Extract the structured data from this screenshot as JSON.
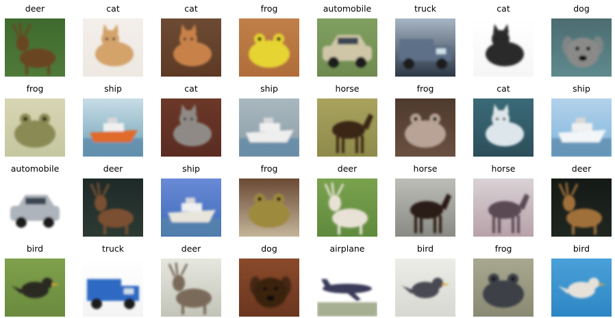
{
  "images": [
    {
      "label": "deer",
      "subject": "deer",
      "bg": "#4f7a3a",
      "fg": "#6b4424",
      "top": "#3f6a2e"
    },
    {
      "label": "cat",
      "subject": "cat",
      "bg": "#eee8e2",
      "fg": "#d3a36a",
      "top": "#f3efea"
    },
    {
      "label": "cat",
      "subject": "cat",
      "bg": "#5e3a24",
      "fg": "#c8824a",
      "top": "#6c4a33"
    },
    {
      "label": "frog",
      "subject": "frog",
      "bg": "#b06d3a",
      "fg": "#e6d431",
      "top": "#c07f48"
    },
    {
      "label": "automobile",
      "subject": "automobile",
      "bg": "#6f8a4f",
      "fg": "#cfc6a8",
      "top": "#7fa060"
    },
    {
      "label": "truck",
      "subject": "truck",
      "bg": "#2d3746",
      "fg": "#5d6f88",
      "top": "#a7b6c4"
    },
    {
      "label": "cat",
      "subject": "cat",
      "bg": "#f6f6f6",
      "fg": "#2b2b2b",
      "top": "#ffffff"
    },
    {
      "label": "dog",
      "subject": "dog",
      "bg": "#5f8a8e",
      "fg": "#8a8a88",
      "top": "#4c6c70"
    },
    {
      "label": "frog",
      "subject": "frog",
      "bg": "#c4c79f",
      "fg": "#8a8a55",
      "top": "#d8d6b4"
    },
    {
      "label": "ship",
      "subject": "ship",
      "bg": "#6ea0b7",
      "fg": "#e06a2a",
      "top": "#c8dde6"
    },
    {
      "label": "cat",
      "subject": "cat",
      "bg": "#5a2c22",
      "fg": "#8f8a86",
      "top": "#6b3828"
    },
    {
      "label": "ship",
      "subject": "ship",
      "bg": "#8b9ca6",
      "fg": "#eeeeee",
      "top": "#a9b8bf"
    },
    {
      "label": "horse",
      "subject": "horse",
      "bg": "#8e8a4a",
      "fg": "#3a2616",
      "top": "#a9a35e"
    },
    {
      "label": "frog",
      "subject": "frog",
      "bg": "#6a5040",
      "fg": "#b8a396",
      "top": "#4e3a2e"
    },
    {
      "label": "cat",
      "subject": "cat",
      "bg": "#2c4e5a",
      "fg": "#dde6ea",
      "top": "#3b6a78"
    },
    {
      "label": "ship",
      "subject": "ship",
      "bg": "#7fb4de",
      "fg": "#f3f6f8",
      "top": "#b3d2ea"
    },
    {
      "label": "automobile",
      "subject": "automobile",
      "bg": "#ffffff",
      "fg": "#aeb4bb",
      "top": "#ffffff"
    },
    {
      "label": "deer",
      "subject": "deer",
      "bg": "#2c3a33",
      "fg": "#7a5030",
      "top": "#1e2a28"
    },
    {
      "label": "ship",
      "subject": "ship",
      "bg": "#3c6ab8",
      "fg": "#e8e6dc",
      "top": "#6a8ad6"
    },
    {
      "label": "frog",
      "subject": "frog",
      "bg": "#c4b49a",
      "fg": "#9e8a3e",
      "top": "#6a4a34"
    },
    {
      "label": "deer",
      "subject": "deer",
      "bg": "#5f8a3c",
      "fg": "#e8e2d6",
      "top": "#7aa24e"
    },
    {
      "label": "horse",
      "subject": "horse",
      "bg": "#8a8a84",
      "fg": "#2a1a12",
      "top": "#bdbdb8"
    },
    {
      "label": "horse",
      "subject": "horse",
      "bg": "#b7a1a8",
      "fg": "#5a4a52",
      "top": "#d9d2d6"
    },
    {
      "label": "deer",
      "subject": "deer",
      "bg": "#1f2620",
      "fg": "#a0703a",
      "top": "#151a16"
    },
    {
      "label": "bird",
      "subject": "bird",
      "bg": "#6a8a3e",
      "fg": "#2a2a22",
      "top": "#7fa04c"
    },
    {
      "label": "truck",
      "subject": "truck",
      "bg": "#f4f4f4",
      "fg": "#2f6ac4",
      "top": "#ffffff"
    },
    {
      "label": "deer",
      "subject": "deer",
      "bg": "#c2c4b8",
      "fg": "#7a6a5a",
      "top": "#e6e8e0"
    },
    {
      "label": "dog",
      "subject": "dog",
      "bg": "#6a3620",
      "fg": "#3a2010",
      "top": "#8a4a2a"
    },
    {
      "label": "airplane",
      "subject": "airplane",
      "bg": "#ffffff",
      "fg": "#3a3a5a",
      "top": "#ffffff"
    },
    {
      "label": "bird",
      "subject": "bird",
      "bg": "#d8d8d2",
      "fg": "#4a4a52",
      "top": "#ecece8"
    },
    {
      "label": "frog",
      "subject": "frog",
      "bg": "#8a8a74",
      "fg": "#3c4046",
      "top": "#a8a890"
    },
    {
      "label": "bird",
      "subject": "bird",
      "bg": "#2d86c4",
      "fg": "#e6e2da",
      "top": "#4aa0d8"
    }
  ]
}
